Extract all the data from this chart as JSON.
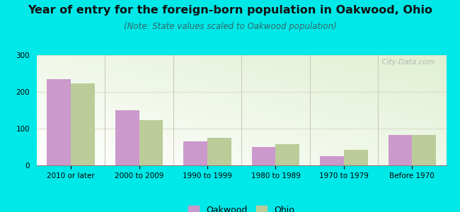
{
  "title": "Year of entry for the foreign-born population in Oakwood, Ohio",
  "subtitle": "(Note: State values scaled to Oakwood population)",
  "categories": [
    "2010 or later",
    "2000 to 2009",
    "1990 to 1999",
    "1980 to 1989",
    "1970 to 1979",
    "Before 1970"
  ],
  "oakwood_values": [
    235,
    150,
    65,
    50,
    25,
    83
  ],
  "ohio_values": [
    224,
    123,
    75,
    57,
    42,
    83
  ],
  "oakwood_color": "#cc99cc",
  "ohio_color": "#bbcc99",
  "background_color": "#00e8e8",
  "ylim": [
    0,
    300
  ],
  "yticks": [
    0,
    100,
    200,
    300
  ],
  "bar_width": 0.35,
  "title_fontsize": 11.5,
  "subtitle_fontsize": 8.5,
  "tick_fontsize": 7.5,
  "legend_fontsize": 9,
  "watermark": "  City-Data.com"
}
